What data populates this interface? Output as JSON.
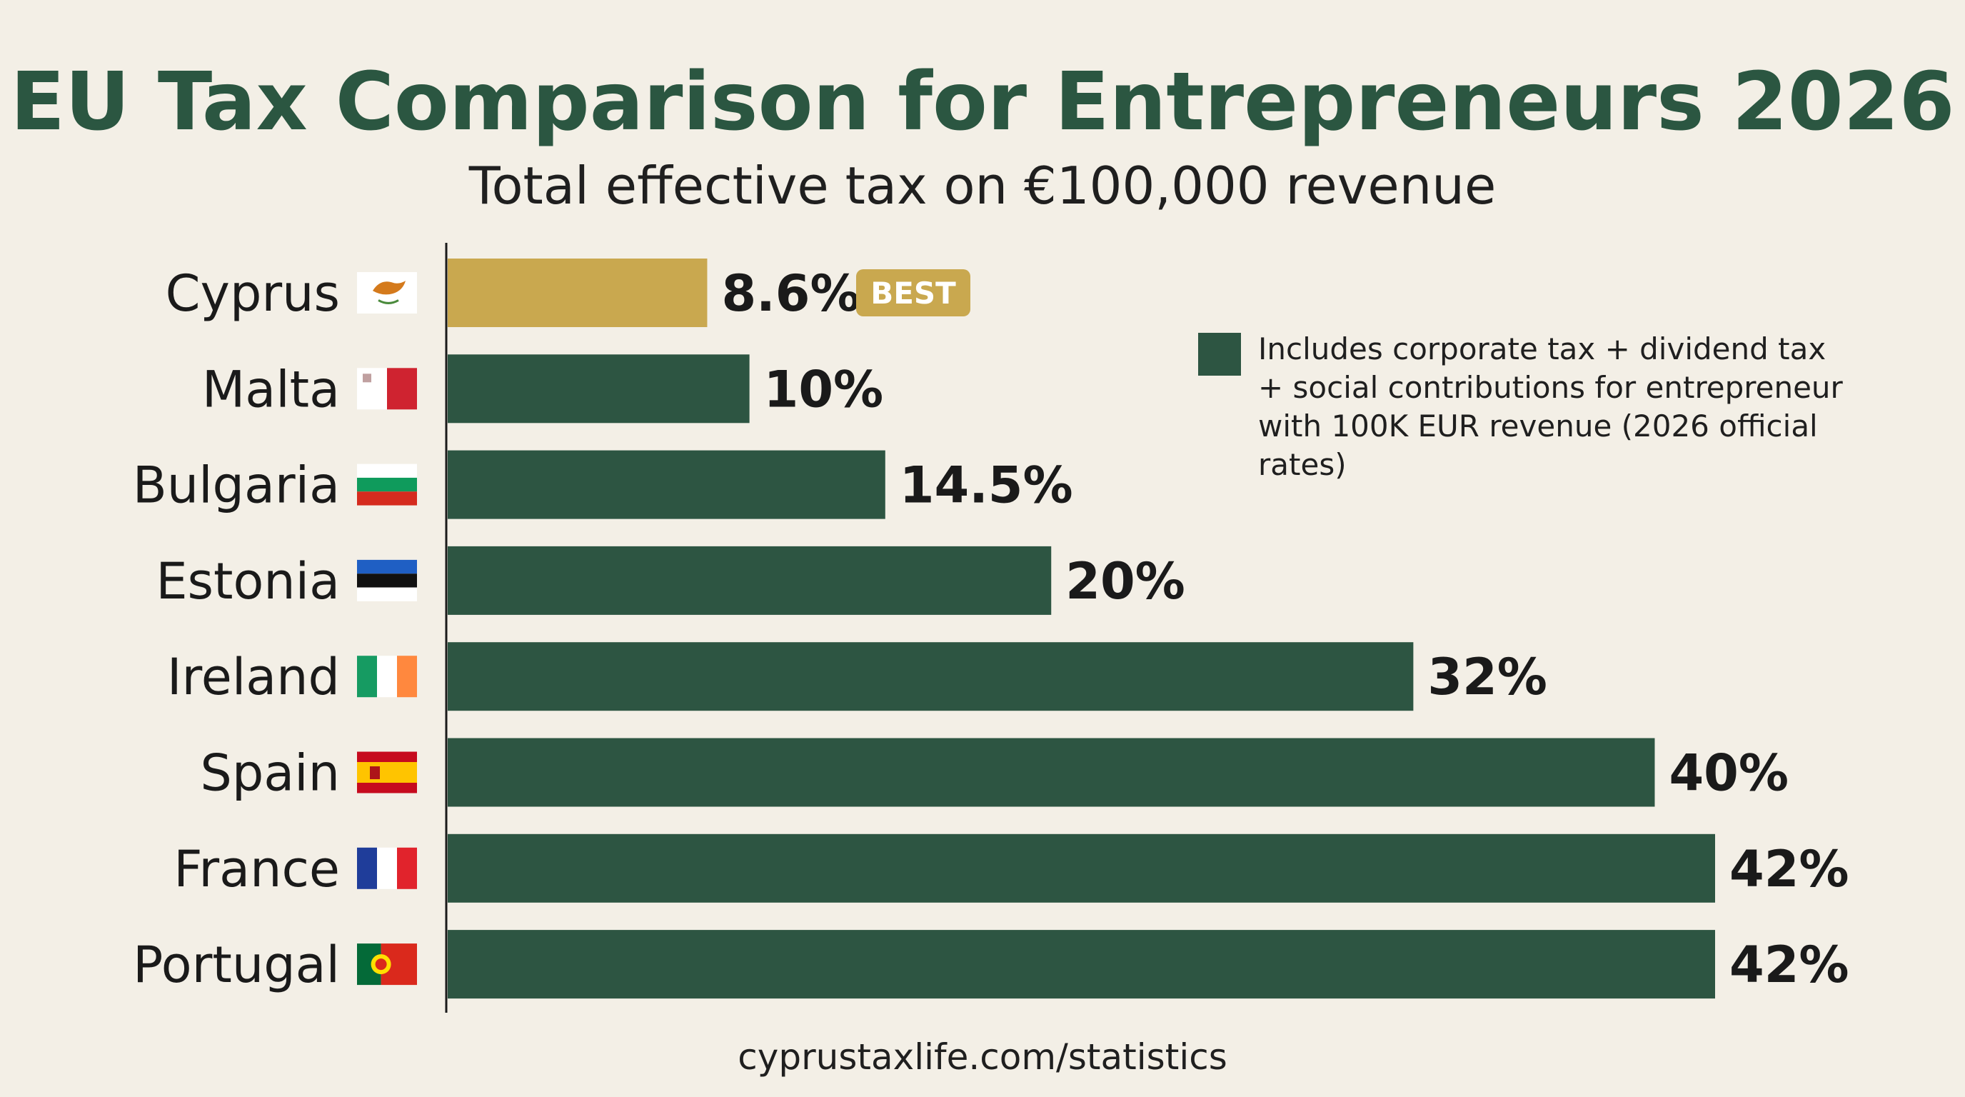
{
  "chart_data": {
    "type": "bar",
    "orientation": "horizontal",
    "title": "EU Tax Comparison for Entrepreneurs 2026",
    "subtitle": "Total effective tax on €100,000 revenue",
    "categories": [
      "Cyprus",
      "Malta",
      "Bulgaria",
      "Estonia",
      "Ireland",
      "Spain",
      "France",
      "Portugal"
    ],
    "values": [
      8.6,
      10,
      14.5,
      20,
      32,
      40,
      42,
      42
    ],
    "value_labels": [
      "8.6%",
      "10%",
      "14.5%",
      "20%",
      "32%",
      "40%",
      "42%",
      "42%"
    ],
    "flags": [
      "flag-cyprus-icon",
      "flag-malta-icon",
      "flag-bulgaria-icon",
      "flag-estonia-icon",
      "flag-ireland-icon",
      "flag-spain-icon",
      "flag-france-icon",
      "flag-portugal-icon"
    ],
    "highlight": {
      "category": "Cyprus",
      "badge": "BEST",
      "color": "#c9a84f"
    },
    "bar_color": "#2d5542",
    "xlim": [
      0,
      42
    ],
    "grid": false,
    "legend": {
      "placement": "top-right",
      "text": "Includes corporate tax + dividend tax + social contributions for entrepreneur with 100K EUR revenue (2026 official rates)"
    },
    "xlabel": "",
    "ylabel": ""
  },
  "source": "cyprustaxlife.com/statistics",
  "colors": {
    "background": "#f3efe6",
    "title": "#2b5641",
    "axis": "#1a1a1a"
  }
}
